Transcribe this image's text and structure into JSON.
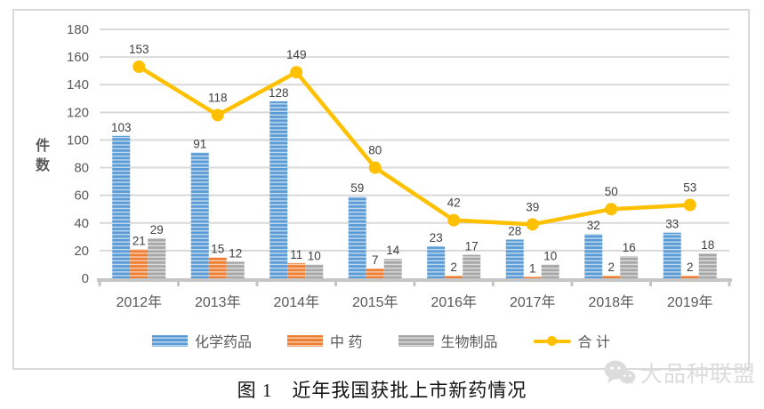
{
  "chart_data": {
    "type": "bar+line",
    "title": "",
    "categories": [
      "2012年",
      "2013年",
      "2014年",
      "2015年",
      "2016年",
      "2017年",
      "2018年",
      "2019年"
    ],
    "bar_series": [
      {
        "name": "化学药品",
        "legend_label": "化学药品",
        "color": "#5b9bd5",
        "stripe_light": "#bdd7ee",
        "values": [
          103,
          91,
          128,
          59,
          23,
          28,
          32,
          33
        ]
      },
      {
        "name": "中药",
        "legend_label": "中 药",
        "color": "#ed7d31",
        "stripe_light": "#f8cbad",
        "values": [
          21,
          15,
          11,
          7,
          2,
          1,
          2,
          2
        ]
      },
      {
        "name": "生物制品",
        "legend_label": "生物制品",
        "color": "#a6a6a6",
        "stripe_light": "#dbdbdb",
        "values": [
          29,
          12,
          10,
          14,
          17,
          10,
          16,
          18
        ]
      }
    ],
    "line_series": {
      "name": "合计",
      "legend_label": "合 计",
      "color": "#ffc000",
      "values": [
        153,
        118,
        149,
        80,
        42,
        39,
        50,
        53
      ]
    },
    "xlabel": "",
    "ylabel": "件数",
    "ylim": [
      0,
      180
    ],
    "ytick_step": 20,
    "grid": true,
    "legend_position": "bottom",
    "axis_text_color": "#595959",
    "data_label_color": "#404040",
    "gridline_color": "#d9d9d9",
    "axis_line_color": "#c6c6c6"
  },
  "caption": "图 1　近年我国获批上市新药情况",
  "watermark": {
    "text": "大品种联盟",
    "color": "#dcdcdc"
  }
}
